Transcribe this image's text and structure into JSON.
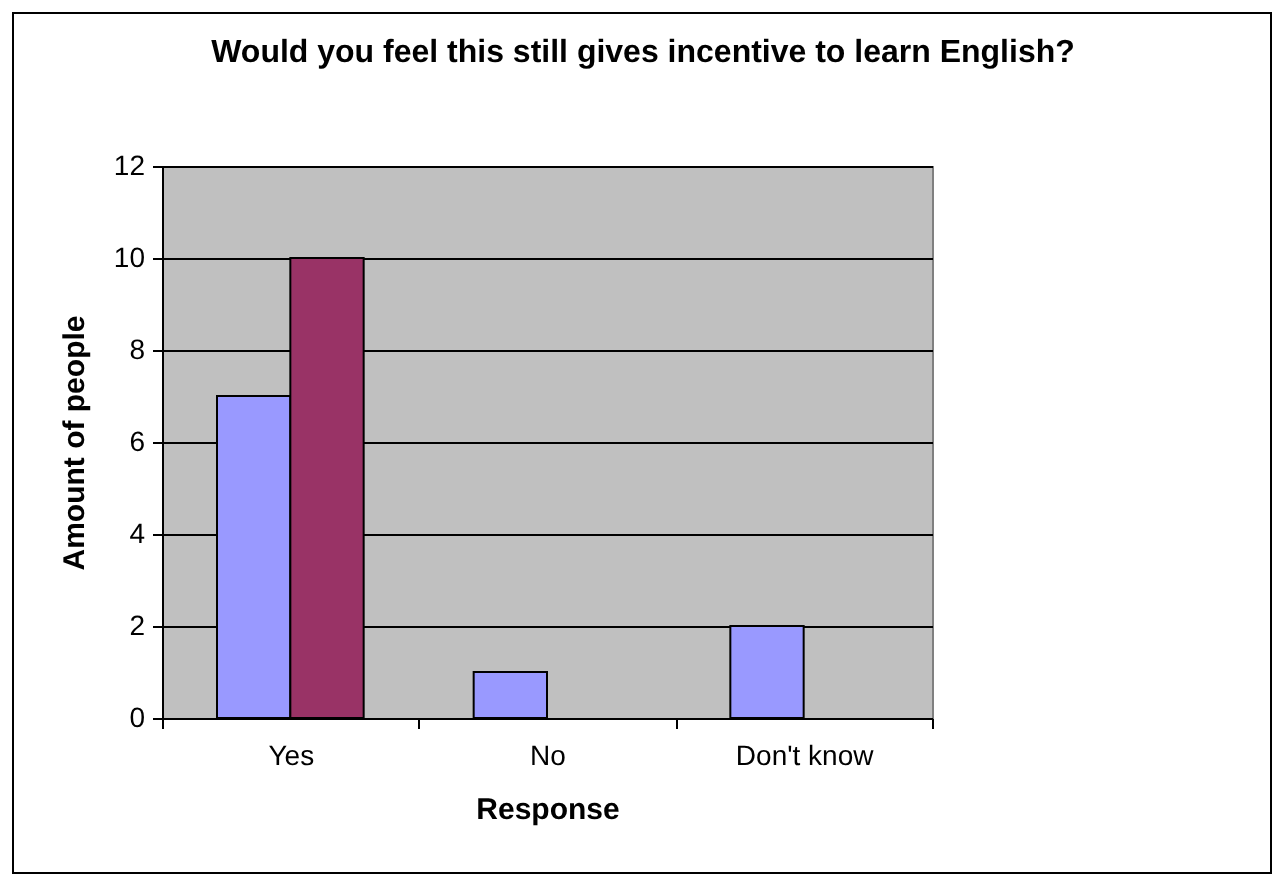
{
  "chart_data": {
    "type": "bar",
    "title": "Would you feel this still gives incentive to learn English?",
    "xlabel": "Response",
    "ylabel": "Amount of people",
    "categories": [
      "Yes",
      "No",
      "Don't know"
    ],
    "series": [
      {
        "color": "#9999ff",
        "values": [
          7,
          1,
          2
        ]
      },
      {
        "color": "#993366",
        "values": [
          10,
          null,
          null
        ]
      }
    ],
    "ylim": [
      0,
      12
    ],
    "yticks": [
      0,
      2,
      4,
      6,
      8,
      10,
      12
    ],
    "grid": "y"
  }
}
